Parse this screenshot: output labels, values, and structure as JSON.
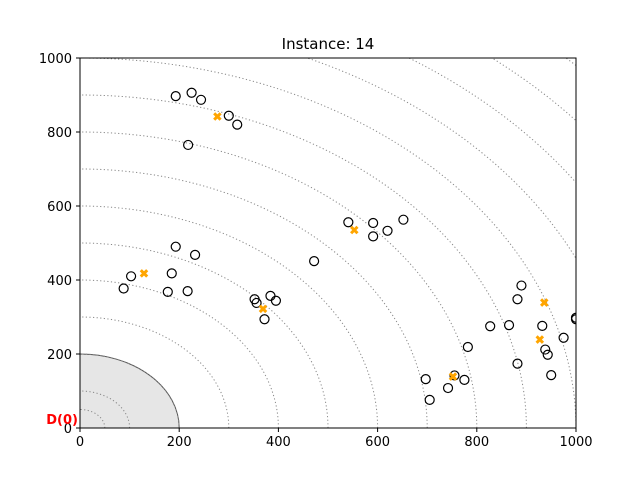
{
  "chart_data": {
    "type": "scatter",
    "title": "Instance: 14",
    "xlabel": "",
    "ylabel": "",
    "xlim": [
      0,
      1000
    ],
    "ylim": [
      0,
      1000
    ],
    "x_ticks": [
      0,
      200,
      400,
      600,
      800,
      1000
    ],
    "y_ticks": [
      0,
      200,
      400,
      600,
      800,
      1000
    ],
    "x_tick_labels": [
      "0",
      "200",
      "400",
      "600",
      "800",
      "1000"
    ],
    "y_tick_labels": [
      "0",
      "200",
      "400",
      "600",
      "800",
      "1000"
    ],
    "grid": false,
    "depot": {
      "label": "D(0)",
      "x": 0,
      "y": 0,
      "color": "#ff0000"
    },
    "depot_region_radius": 200,
    "dotted_arc_radii": [
      50,
      100,
      200,
      300,
      400,
      500,
      600,
      700,
      800,
      900,
      1000,
      1100,
      1200,
      1300,
      1400
    ],
    "series": [
      {
        "marker": "open-circle",
        "color": "#000000",
        "points": [
          [
            193,
            897
          ],
          [
            225,
            906
          ],
          [
            244,
            887
          ],
          [
            300,
            844
          ],
          [
            317,
            820
          ],
          [
            218,
            765
          ],
          [
            193,
            490
          ],
          [
            232,
            468
          ],
          [
            103,
            410
          ],
          [
            185,
            418
          ],
          [
            88,
            377
          ],
          [
            177,
            368
          ],
          [
            217,
            370
          ],
          [
            352,
            348
          ],
          [
            356,
            338
          ],
          [
            384,
            357
          ],
          [
            395,
            344
          ],
          [
            372,
            294
          ],
          [
            472,
            451
          ],
          [
            541,
            556
          ],
          [
            591,
            554
          ],
          [
            591,
            518
          ],
          [
            620,
            533
          ],
          [
            652,
            563
          ],
          [
            697,
            132
          ],
          [
            705,
            76
          ],
          [
            742,
            108
          ],
          [
            755,
            142
          ],
          [
            775,
            130
          ],
          [
            782,
            219
          ],
          [
            827,
            275
          ],
          [
            865,
            278
          ],
          [
            882,
            348
          ],
          [
            890,
            385
          ],
          [
            882,
            174
          ],
          [
            932,
            276
          ],
          [
            938,
            212
          ],
          [
            943,
            198
          ],
          [
            950,
            143
          ],
          [
            975,
            244
          ],
          [
            1000,
            298
          ],
          [
            1000,
            294
          ]
        ]
      },
      {
        "marker": "x",
        "color": "#ffa500",
        "points": [
          [
            277,
            842
          ],
          [
            129,
            418
          ],
          [
            553,
            535
          ],
          [
            369,
            322
          ],
          [
            752,
            139
          ],
          [
            936,
            339
          ],
          [
            927,
            239
          ]
        ]
      }
    ]
  }
}
